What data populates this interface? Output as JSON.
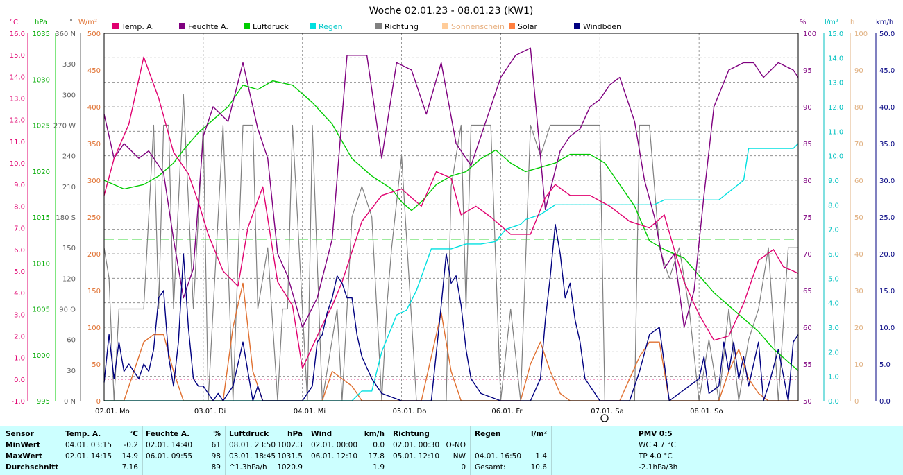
{
  "title": "Woche 02.01.23 - 08.01.23 (KW1)",
  "axis_headers": {
    "temp": "°C",
    "pressure": "hPa",
    "direction": "°",
    "radiation": "W/m²",
    "humidity": "%",
    "rain": "l/m²",
    "sun": "h",
    "wind": "km/h"
  },
  "axes": {
    "temp_ticks": [
      "16.0",
      "15.0",
      "14.0",
      "13.0",
      "12.0",
      "11.0",
      "10.0",
      "9.0",
      "8.0",
      "7.0",
      "6.0",
      "5.0",
      "4.0",
      "3.0",
      "2.0",
      "1.0",
      "0.0",
      "-1.0"
    ],
    "pressure_ticks": [
      "1035",
      "1030",
      "1025",
      "1020",
      "1015",
      "1010",
      "1005",
      "1000",
      "995"
    ],
    "direction_ticks": [
      "360 N",
      "330",
      "300",
      "270 W",
      "240",
      "210",
      "180 S",
      "150",
      "120",
      "90 O",
      "60",
      "30",
      "0 N"
    ],
    "radiation_ticks": [
      "500",
      "450",
      "400",
      "350",
      "300",
      "250",
      "200",
      "150",
      "100",
      "50",
      "0"
    ],
    "humidity_ticks": [
      "100",
      "95",
      "90",
      "85",
      "80",
      "75",
      "70",
      "65",
      "60",
      "55",
      "50"
    ],
    "rain_ticks": [
      "15.0",
      "14.0",
      "13.0",
      "12.0",
      "11.0",
      "10.0",
      "9.0",
      "8.0",
      "7.0",
      "6.0",
      "5.0",
      "4.0",
      "3.0",
      "2.0",
      "1.0",
      "0.0"
    ],
    "sun_ticks": [
      "100",
      "90",
      "80",
      "70",
      "60",
      "50",
      "40",
      "30",
      "20",
      "10",
      "0"
    ],
    "wind_ticks": [
      "50.0",
      "45.0",
      "40.0",
      "35.0",
      "30.0",
      "25.0",
      "20.0",
      "15.0",
      "10.0",
      "5.0",
      "0.0"
    ],
    "day_labels": [
      "02.01. Mo",
      "03.01. Di",
      "04.01. Mi",
      "05.01. Do",
      "06.01. Fr",
      "07.01. Sa",
      "08.01. So"
    ]
  },
  "legend": [
    {
      "label": "Temp. A.",
      "color": "#e0006f"
    },
    {
      "label": "Feuchte A.",
      "color": "#7f007f"
    },
    {
      "label": "Luftdruck",
      "color": "#00cc00"
    },
    {
      "label": "Regen",
      "color": "#00e0e0"
    },
    {
      "label": "Richtung",
      "color": "#808080"
    },
    {
      "label": "Sonnenschein",
      "color": "#ffcc99"
    },
    {
      "label": "Solar",
      "color": "#ff8040"
    },
    {
      "label": "Windböen",
      "color": "#000080"
    }
  ],
  "colors": {
    "temp": "#e0006f",
    "humidity": "#7f007f",
    "pressure": "#00cc00",
    "rain": "#00e0e0",
    "direction": "#808080",
    "sun": "#ffcc99",
    "solar": "#e07030",
    "wind": "#000080",
    "axis_dir": "#606060",
    "table_bg": "#ccffff"
  },
  "chart_data": {
    "type": "line",
    "x_unit": "days from 02.01.23 00:00",
    "x_range": [
      0,
      7
    ],
    "series": [
      {
        "name": "Temp. A.",
        "unit": "°C",
        "range": [
          -1,
          16
        ],
        "x": [
          0,
          0.1,
          0.25,
          0.4,
          0.55,
          0.7,
          0.85,
          0.95,
          1.05,
          1.2,
          1.35,
          1.45,
          1.6,
          1.75,
          1.9,
          2.0,
          2.1,
          2.2,
          2.3,
          2.4,
          2.6,
          2.8,
          3.0,
          3.2,
          3.35,
          3.5,
          3.6,
          3.75,
          3.9,
          4.1,
          4.3,
          4.45,
          4.55,
          4.7,
          4.9,
          5.1,
          5.3,
          5.5,
          5.65,
          5.75,
          5.85,
          6.0,
          6.15,
          6.3,
          6.45,
          6.6,
          6.75,
          6.85,
          6.95,
          7.0
        ],
        "y": [
          8.5,
          10.2,
          11.8,
          14.9,
          13.0,
          10.5,
          9.5,
          8.2,
          6.7,
          5.0,
          4.3,
          7.0,
          8.9,
          4.5,
          3.4,
          0.5,
          1.5,
          2.5,
          3.4,
          4.5,
          7.3,
          8.5,
          8.8,
          8.0,
          9.6,
          9.3,
          7.6,
          8.0,
          7.5,
          6.7,
          6.7,
          8.4,
          9.0,
          8.5,
          8.5,
          8.0,
          7.3,
          7.0,
          7.6,
          6.0,
          4.5,
          3.0,
          1.8,
          2.0,
          3.5,
          5.5,
          6.0,
          5.2,
          5.0,
          4.9
        ]
      },
      {
        "name": "Feuchte A.",
        "unit": "%",
        "range": [
          50,
          100
        ],
        "x": [
          0,
          0.1,
          0.2,
          0.35,
          0.45,
          0.6,
          0.7,
          0.8,
          0.9,
          1.0,
          1.1,
          1.25,
          1.4,
          1.55,
          1.65,
          1.75,
          1.85,
          2.0,
          2.15,
          2.3,
          2.45,
          2.65,
          2.8,
          2.95,
          3.1,
          3.25,
          3.4,
          3.55,
          3.7,
          3.85,
          4.0,
          4.15,
          4.3,
          4.45,
          4.6,
          4.7,
          4.8,
          4.9,
          5.0,
          5.1,
          5.2,
          5.35,
          5.45,
          5.55,
          5.65,
          5.75,
          5.85,
          5.95,
          6.05,
          6.15,
          6.3,
          6.45,
          6.55,
          6.65,
          6.8,
          6.95,
          7.0
        ],
        "y": [
          89,
          83,
          85,
          83,
          84,
          81,
          72,
          64,
          68,
          86,
          90,
          88,
          96,
          87,
          83,
          70,
          67,
          60,
          64,
          72,
          97,
          97,
          83,
          96,
          95,
          89,
          96,
          85,
          82,
          88,
          94,
          97,
          98,
          76,
          84,
          86,
          87,
          90,
          91,
          93,
          94,
          88,
          80,
          75,
          68,
          70,
          60,
          65,
          78,
          90,
          95,
          96,
          96,
          94,
          96,
          95,
          94
        ]
      },
      {
        "name": "Luftdruck",
        "unit": "hPa",
        "range": [
          995,
          1037.5
        ],
        "x": [
          0,
          0.2,
          0.4,
          0.55,
          0.7,
          0.8,
          0.95,
          1.1,
          1.25,
          1.4,
          1.55,
          1.7,
          1.9,
          2.1,
          2.3,
          2.5,
          2.7,
          2.9,
          3.0,
          3.1,
          3.2,
          3.35,
          3.5,
          3.65,
          3.8,
          3.95,
          4.1,
          4.25,
          4.4,
          4.55,
          4.7,
          4.9,
          5.05,
          5.2,
          5.35,
          5.5,
          5.65,
          5.85,
          6.0,
          6.15,
          6.3,
          6.45,
          6.6,
          6.75,
          6.9,
          7.0
        ],
        "y": [
          1020.5,
          1019.5,
          1020.0,
          1021.0,
          1022.5,
          1024.0,
          1026.0,
          1027.5,
          1029.0,
          1031.5,
          1031.0,
          1032.0,
          1031.5,
          1029.5,
          1027.0,
          1023.0,
          1021.0,
          1019.5,
          1018.0,
          1017.0,
          1018.0,
          1020.0,
          1021.0,
          1021.5,
          1023.0,
          1024.0,
          1022.5,
          1021.5,
          1022.0,
          1022.5,
          1023.5,
          1023.5,
          1022.5,
          1020.0,
          1017.5,
          1013.5,
          1012.5,
          1011.5,
          1009.5,
          1007.5,
          1006.0,
          1004.5,
          1003.0,
          1001.0,
          999.5,
          998.5
        ]
      },
      {
        "name": "Regen",
        "unit": "l/m²",
        "range": [
          0,
          15
        ],
        "x": [
          0,
          2.5,
          2.6,
          2.7,
          2.8,
          2.95,
          3.05,
          3.15,
          3.3,
          3.5,
          3.65,
          3.8,
          3.95,
          4.05,
          4.2,
          4.25,
          4.4,
          4.55,
          4.75,
          4.9,
          5.05,
          5.2,
          5.35,
          5.55,
          5.65,
          5.95,
          6.2,
          6.45,
          6.5,
          6.6,
          6.95,
          7.0
        ],
        "y": [
          0,
          0,
          0.4,
          0.4,
          2.0,
          3.5,
          3.7,
          4.5,
          6.2,
          6.2,
          6.4,
          6.4,
          6.5,
          7.0,
          7.2,
          7.4,
          7.6,
          8.0,
          8.0,
          8.0,
          8.0,
          8.0,
          8.0,
          8.0,
          8.2,
          8.2,
          8.2,
          9.0,
          10.3,
          10.3,
          10.3,
          10.5
        ]
      },
      {
        "name": "Richtung",
        "unit": "°",
        "range": [
          0,
          360
        ],
        "x": [
          0,
          0.05,
          0.1,
          0.15,
          0.2,
          0.3,
          0.4,
          0.5,
          0.55,
          0.6,
          0.65,
          0.7,
          0.8,
          0.9,
          1.0,
          1.05,
          1.1,
          1.2,
          1.3,
          1.4,
          1.5,
          1.55,
          1.65,
          1.75,
          1.8,
          1.85,
          1.9,
          2.0,
          2.05,
          2.1,
          2.2,
          2.35,
          2.4,
          2.5,
          2.6,
          2.7,
          2.8,
          2.85,
          2.9,
          3.0,
          3.15,
          3.25,
          3.35,
          3.45,
          3.5,
          3.6,
          3.65,
          3.7,
          3.8,
          3.9,
          4.0,
          4.1,
          4.2,
          4.3,
          4.4,
          4.5,
          4.6,
          4.7,
          4.8,
          4.9,
          5.0,
          5.05,
          5.1,
          5.2,
          5.25,
          5.35,
          5.4,
          5.5,
          5.6,
          5.7,
          5.8,
          5.9,
          6.0,
          6.1,
          6.2,
          6.3,
          6.4,
          6.5,
          6.6,
          6.7,
          6.8,
          6.9,
          7.0
        ],
        "y": [
          150,
          120,
          0,
          90,
          90,
          90,
          90,
          270,
          90,
          270,
          270,
          90,
          300,
          90,
          270,
          0,
          90,
          270,
          0,
          270,
          270,
          90,
          150,
          0,
          90,
          90,
          270,
          90,
          0,
          270,
          0,
          90,
          0,
          180,
          210,
          180,
          0,
          90,
          150,
          240,
          0,
          0,
          0,
          0,
          210,
          270,
          90,
          270,
          270,
          270,
          0,
          90,
          0,
          270,
          240,
          270,
          270,
          270,
          270,
          270,
          270,
          0,
          0,
          0,
          0,
          0,
          270,
          270,
          150,
          120,
          150,
          90,
          0,
          60,
          0,
          90,
          0,
          60,
          90,
          150,
          0,
          150,
          150
        ]
      },
      {
        "name": "Solar",
        "unit": "W/m²",
        "range": [
          0,
          500
        ],
        "x": [
          0,
          0.2,
          0.3,
          0.4,
          0.5,
          0.6,
          0.7,
          0.8,
          0.9,
          1.0,
          1.2,
          1.3,
          1.4,
          1.5,
          1.6,
          1.7,
          2.0,
          2.2,
          2.3,
          2.4,
          2.5,
          2.6,
          2.7,
          3.0,
          3.2,
          3.3,
          3.4,
          3.5,
          3.6,
          3.7,
          4.0,
          4.2,
          4.3,
          4.4,
          4.5,
          4.6,
          4.7,
          5.0,
          5.2,
          5.3,
          5.4,
          5.5,
          5.6,
          5.7,
          6.0,
          6.2,
          6.3,
          6.4,
          6.5,
          6.6,
          6.7,
          7.0
        ],
        "y": [
          0,
          0,
          40,
          80,
          90,
          90,
          40,
          0,
          0,
          0,
          0,
          100,
          160,
          40,
          0,
          0,
          0,
          0,
          40,
          30,
          20,
          0,
          0,
          0,
          0,
          60,
          120,
          40,
          0,
          0,
          0,
          0,
          50,
          80,
          40,
          10,
          0,
          0,
          0,
          30,
          60,
          80,
          80,
          0,
          0,
          0,
          40,
          70,
          30,
          10,
          0,
          0
        ]
      },
      {
        "name": "Windböen",
        "unit": "km/h",
        "range": [
          0,
          50
        ],
        "x": [
          0,
          0.05,
          0.1,
          0.15,
          0.2,
          0.25,
          0.3,
          0.35,
          0.4,
          0.45,
          0.5,
          0.55,
          0.6,
          0.65,
          0.7,
          0.75,
          0.8,
          0.85,
          0.9,
          0.95,
          1.0,
          1.05,
          1.1,
          1.15,
          1.2,
          1.3,
          1.4,
          1.45,
          1.5,
          1.55,
          1.6,
          1.7,
          2.0,
          2.1,
          2.15,
          2.2,
          2.25,
          2.3,
          2.35,
          2.4,
          2.45,
          2.5,
          2.55,
          2.6,
          2.7,
          2.8,
          3.0,
          3.3,
          3.4,
          3.45,
          3.5,
          3.55,
          3.6,
          3.65,
          3.7,
          3.8,
          4.0,
          4.3,
          4.4,
          4.45,
          4.5,
          4.55,
          4.6,
          4.65,
          4.7,
          4.75,
          4.8,
          4.85,
          5.0,
          5.3,
          5.4,
          5.5,
          5.6,
          5.7,
          6.0,
          6.05,
          6.1,
          6.2,
          6.25,
          6.3,
          6.35,
          6.4,
          6.45,
          6.5,
          6.6,
          6.65,
          6.7,
          6.8,
          6.9,
          6.95,
          7.0
        ],
        "y": [
          2.5,
          9,
          3,
          8,
          4,
          5,
          4,
          3,
          5,
          4,
          7,
          14,
          15,
          6,
          2,
          8,
          20,
          10,
          3,
          2,
          2,
          1,
          0,
          1,
          0,
          2,
          8,
          4,
          0,
          2,
          0,
          0,
          0,
          2,
          8,
          9,
          12,
          14,
          17,
          16,
          14,
          14,
          9,
          6,
          3,
          1,
          0,
          0,
          13,
          20,
          16,
          17,
          13,
          7,
          3,
          1,
          0,
          0,
          3,
          11,
          17,
          24,
          20,
          14,
          16,
          11,
          8,
          3,
          0,
          0,
          4,
          9,
          10,
          0,
          3,
          6,
          1,
          2,
          8,
          4,
          8,
          3,
          6,
          2,
          8,
          0,
          2,
          7,
          0,
          8,
          9
        ]
      }
    ],
    "reference_lines": [
      {
        "axis": "humidity",
        "value": 72,
        "color": "#00cc00",
        "style": "dashed"
      },
      {
        "axis": "temp",
        "value": 0,
        "color": "#e0006f",
        "style": "dotted"
      }
    ],
    "grid": true
  },
  "table": {
    "headers": {
      "sensor": "Sensor",
      "temp": "Temp. A.",
      "temp_unit": "°C",
      "hum": "Feuchte A.",
      "hum_unit": "%",
      "pres": "Luftdruck",
      "pres_unit": "hPa",
      "wind": "Wind",
      "wind_unit": "km/h",
      "dir": "Richtung",
      "rain": "Regen",
      "rain_unit": "l/m²",
      "pmv": "PMV 0:5"
    },
    "row_labels": [
      "MinWert",
      "MaxWert",
      "Durchschnitt"
    ],
    "temp": [
      [
        "04.01.  03:15",
        "-0.2"
      ],
      [
        "02.01.  14:15",
        "14.9"
      ],
      [
        "",
        "7.16"
      ]
    ],
    "hum": [
      [
        "02.01.  14:40",
        "61"
      ],
      [
        "06.01.  09:55",
        "98"
      ],
      [
        "",
        "89"
      ]
    ],
    "pres": [
      [
        "08.01.  23:50",
        "1002.3"
      ],
      [
        "03.01.  18:45",
        "1031.5"
      ],
      [
        "^1.3hPa/h",
        "1020.9"
      ]
    ],
    "wind": [
      [
        "02.01.  00:00",
        "0.0"
      ],
      [
        "06.01.  12:10",
        "17.8"
      ],
      [
        "",
        "1.9"
      ]
    ],
    "dir": [
      [
        "02.01.  00:30",
        "O-NO"
      ],
      [
        "05.01.  12:10",
        "NW"
      ],
      [
        "",
        "0"
      ]
    ],
    "rain": [
      [
        "",
        ""
      ],
      [
        "04.01.  16:50",
        "1.4"
      ],
      [
        "Gesamt:",
        "10.6"
      ]
    ],
    "pmv": [
      "WC 4.7 °C",
      "TP 4.0 °C",
      "-2.1hPa/3h"
    ]
  }
}
